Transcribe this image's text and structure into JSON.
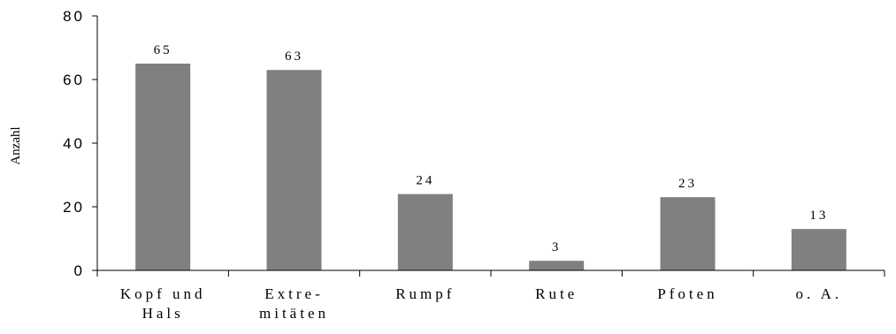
{
  "chart_data": {
    "type": "bar",
    "categories": [
      [
        "Kopf und",
        "Hals"
      ],
      [
        "Extre-",
        "mitäten"
      ],
      [
        "Rumpf"
      ],
      [
        "Rute"
      ],
      [
        "Pfoten"
      ],
      [
        "o. A."
      ]
    ],
    "values": [
      65,
      63,
      24,
      3,
      23,
      13
    ],
    "data_labels": [
      "65",
      "63",
      "24",
      "3",
      "23",
      "13"
    ],
    "y_ticks": [
      "0",
      "20",
      "40",
      "60",
      "80"
    ],
    "ylabel": "Anzahl",
    "ylim": [
      0,
      80
    ],
    "bar_color": "#808080",
    "grid": false,
    "legend": "none"
  }
}
